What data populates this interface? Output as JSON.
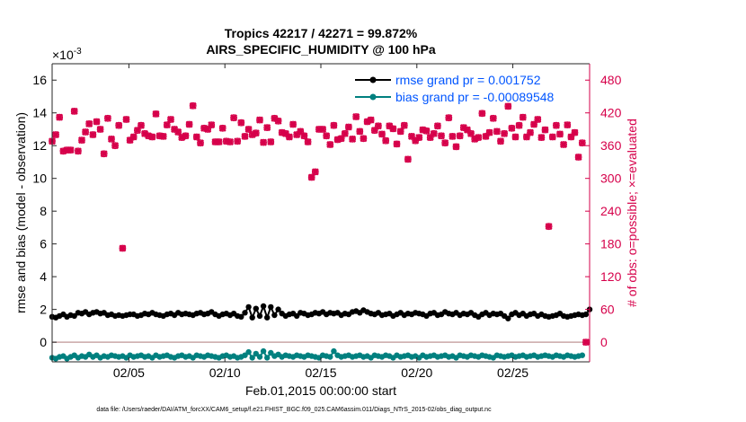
{
  "chart_data": {
    "type": "line",
    "title": "Tropics 42217 / 42271 = 99.872%",
    "subtitle": "AIRS_SPECIFIC_HUMIDITY @ 100 hPa",
    "xlabel": "Feb.01,2015 00:00:00 start",
    "ylabel_left": "rmse and bias (model - observation)",
    "ylabel_right": "# of obs: o=possible; ×=evaluated",
    "y_exponent": "×10",
    "y_exponent_power": "-3",
    "footnote": "data file: /Users/raeder/DAI/ATM_forcXX/CAM6_setup/f.e21.FHIST_BGC.f09_025.CAM6assim.011/Diags_NTrS_2015-02/obs_diag_output.nc",
    "xlim": [
      1,
      29
    ],
    "ylim_left": [
      -1.2,
      17
    ],
    "ylim_right": [
      -36,
      510
    ],
    "x_ticks": [
      5,
      10,
      15,
      20,
      25
    ],
    "x_tick_labels": [
      "02/05",
      "02/10",
      "02/15",
      "02/20",
      "02/25"
    ],
    "y_left_ticks": [
      0,
      2,
      4,
      6,
      8,
      10,
      12,
      14,
      16
    ],
    "y_left_tick_labels": [
      "0",
      "2",
      "4",
      "6",
      "8",
      "10",
      "12",
      "14",
      "16"
    ],
    "y_right_ticks": [
      0,
      60,
      120,
      180,
      240,
      300,
      360,
      420,
      480
    ],
    "y_right_tick_labels": [
      "0",
      "60",
      "120",
      "180",
      "240",
      "300",
      "360",
      "420",
      "480"
    ],
    "grid": false,
    "legend_position": "top-right",
    "colors": {
      "rmse": "#000000",
      "bias": "#00807f",
      "obs": "#d6004a",
      "legend_text": "#0055ff",
      "zero_line": "#c9a7a7"
    },
    "series": [
      {
        "name": "rmse grand pr = 0.001752",
        "axis": "left",
        "values": [
          1.55,
          1.5,
          1.6,
          1.7,
          1.55,
          1.65,
          1.6,
          1.8,
          1.75,
          1.85,
          1.7,
          1.8,
          1.85,
          1.75,
          1.8,
          1.65,
          1.7,
          1.6,
          1.65,
          1.6,
          1.65,
          1.7,
          1.7,
          1.6,
          1.65,
          1.75,
          1.7,
          1.8,
          1.7,
          1.65,
          1.6,
          1.7,
          1.75,
          1.65,
          1.8,
          1.7,
          1.75,
          1.7,
          1.65,
          1.75,
          1.8,
          1.7,
          1.75,
          1.85,
          1.7,
          1.6,
          1.7,
          1.75,
          1.65,
          1.75,
          1.6,
          1.55,
          1.8,
          2.15,
          1.5,
          2.05,
          1.6,
          2.2,
          1.5,
          2.15,
          1.65,
          2.0,
          1.75,
          1.6,
          1.7,
          1.75,
          1.6,
          1.8,
          1.75,
          1.65,
          1.7,
          1.8,
          1.75,
          1.85,
          1.7,
          1.8,
          1.75,
          1.8,
          1.65,
          1.75,
          1.7,
          1.85,
          1.9,
          1.8,
          1.95,
          1.85,
          1.75,
          1.7,
          1.8,
          1.65,
          1.7,
          1.75,
          1.6,
          1.7,
          1.8,
          1.65,
          1.75,
          1.7,
          1.8,
          1.75,
          1.7,
          1.6,
          1.75,
          1.8,
          1.65,
          1.7,
          1.85,
          1.75,
          1.7,
          1.8,
          1.65,
          1.75,
          1.7,
          1.8,
          1.65,
          1.55,
          1.7,
          1.8,
          1.65,
          1.75,
          1.7,
          1.75,
          1.6,
          1.45,
          1.7,
          1.8,
          1.65,
          1.75,
          1.6,
          1.7,
          1.75,
          1.6,
          1.7,
          1.6,
          1.55,
          1.6,
          1.65,
          1.75,
          1.6,
          1.55,
          1.6,
          1.65,
          1.7,
          1.65,
          1.7,
          2.0
        ]
      },
      {
        "name": "bias grand pr = -0.00089548",
        "axis": "left",
        "values": [
          -0.95,
          -1.0,
          -0.9,
          -0.85,
          -1.0,
          -0.9,
          -0.8,
          -0.95,
          -0.85,
          -0.9,
          -0.75,
          -0.9,
          -0.8,
          -0.95,
          -0.85,
          -0.9,
          -0.8,
          -0.85,
          -0.9,
          -0.85,
          -0.95,
          -0.8,
          -0.9,
          -0.85,
          -0.8,
          -0.9,
          -0.85,
          -0.95,
          -0.8,
          -0.9,
          -0.85,
          -0.8,
          -0.9,
          -0.95,
          -0.85,
          -0.8,
          -0.9,
          -0.85,
          -0.95,
          -0.8,
          -0.85,
          -0.9,
          -0.8,
          -0.85,
          -0.9,
          -0.95,
          -0.85,
          -0.8,
          -0.9,
          -0.85,
          -0.95,
          -0.9,
          -0.8,
          -0.6,
          -0.95,
          -0.7,
          -0.9,
          -0.55,
          -0.95,
          -0.65,
          -0.85,
          -0.75,
          -0.9,
          -0.8,
          -0.85,
          -0.9,
          -0.8,
          -0.85,
          -0.9,
          -0.8,
          -0.85,
          -0.9,
          -0.95,
          -0.8,
          -0.85,
          -0.9,
          -0.55,
          -0.8,
          -0.9,
          -0.85,
          -0.8,
          -0.9,
          -0.85,
          -0.8,
          -0.9,
          -0.85,
          -0.95,
          -0.8,
          -0.85,
          -0.9,
          -0.8,
          -0.85,
          -0.95,
          -0.8,
          -0.9,
          -0.85,
          -0.8,
          -0.9,
          -0.85,
          -0.95,
          -0.8,
          -0.9,
          -0.85,
          -0.8,
          -0.9,
          -0.85,
          -0.8,
          -0.9,
          -0.85,
          -0.95,
          -0.8,
          -0.85,
          -0.9,
          -0.8,
          -0.85,
          -0.9,
          -0.8,
          -0.85,
          -0.9,
          -0.95,
          -0.8,
          -0.85,
          -0.9,
          -0.85,
          -0.8,
          -0.9,
          -0.85,
          -0.8,
          -0.9,
          -0.85,
          -0.8,
          -0.9,
          -0.85,
          -0.8,
          -0.85,
          -0.9,
          -0.8,
          -0.85,
          -0.9,
          -0.8,
          -0.85,
          -0.9,
          -0.85,
          -0.8
        ]
      },
      {
        "name": "# of obs possible",
        "axis": "right",
        "marker": "o",
        "values": [
          368,
          380,
          412,
          350,
          352,
          352,
          423,
          350,
          370,
          385,
          400,
          380,
          404,
          390,
          345,
          410,
          372,
          360,
          397,
          172,
          408,
          370,
          376,
          388,
          397,
          382,
          378,
          376,
          418,
          378,
          377,
          398,
          408,
          390,
          385,
          375,
          378,
          399,
          433,
          376,
          365,
          392,
          390,
          398,
          367,
          367,
          392,
          368,
          367,
          411,
          368,
          402,
          377,
          390,
          380,
          383,
          407,
          366,
          393,
          367,
          410,
          405,
          384,
          382,
          376,
          399,
          380,
          386,
          378,
          367,
          302,
          312,
          390,
          390,
          378,
          362,
          397,
          371,
          373,
          382,
          394,
          372,
          413,
          386,
          373,
          404,
          407,
          388,
          396,
          381,
          369,
          396,
          391,
          363,
          386,
          397,
          335,
          377,
          369,
          375,
          389,
          387,
          375,
          382,
          396,
          378,
          365,
          411,
          377,
          358,
          378,
          393,
          389,
          382,
          372,
          375,
          419,
          377,
          384,
          410,
          386,
          368,
          382,
          432,
          392,
          376,
          397,
          412,
          376,
          384,
          399,
          408,
          375,
          389,
          212,
          376,
          397,
          381,
          362,
          398,
          376,
          384,
          339,
          365,
          0
        ]
      },
      {
        "name": "# of obs evaluated",
        "axis": "right",
        "marker": "x",
        "values": [
          368,
          380,
          412,
          350,
          352,
          352,
          423,
          350,
          370,
          385,
          400,
          380,
          404,
          390,
          345,
          410,
          372,
          360,
          397,
          172,
          408,
          370,
          376,
          388,
          397,
          382,
          378,
          376,
          418,
          378,
          377,
          398,
          408,
          390,
          385,
          375,
          378,
          399,
          433,
          376,
          365,
          392,
          390,
          398,
          367,
          367,
          392,
          368,
          367,
          411,
          368,
          402,
          377,
          390,
          380,
          383,
          407,
          366,
          393,
          367,
          410,
          405,
          384,
          382,
          376,
          399,
          380,
          386,
          378,
          367,
          302,
          312,
          390,
          390,
          378,
          362,
          397,
          371,
          373,
          382,
          394,
          372,
          413,
          386,
          373,
          404,
          407,
          388,
          396,
          381,
          369,
          396,
          391,
          363,
          386,
          397,
          335,
          377,
          369,
          375,
          389,
          387,
          375,
          382,
          396,
          378,
          365,
          411,
          377,
          358,
          378,
          393,
          389,
          382,
          372,
          375,
          419,
          377,
          384,
          410,
          386,
          368,
          382,
          432,
          392,
          376,
          397,
          412,
          376,
          384,
          399,
          408,
          375,
          389,
          212,
          376,
          397,
          381,
          362,
          398,
          376,
          384,
          339,
          365,
          0
        ]
      }
    ]
  }
}
